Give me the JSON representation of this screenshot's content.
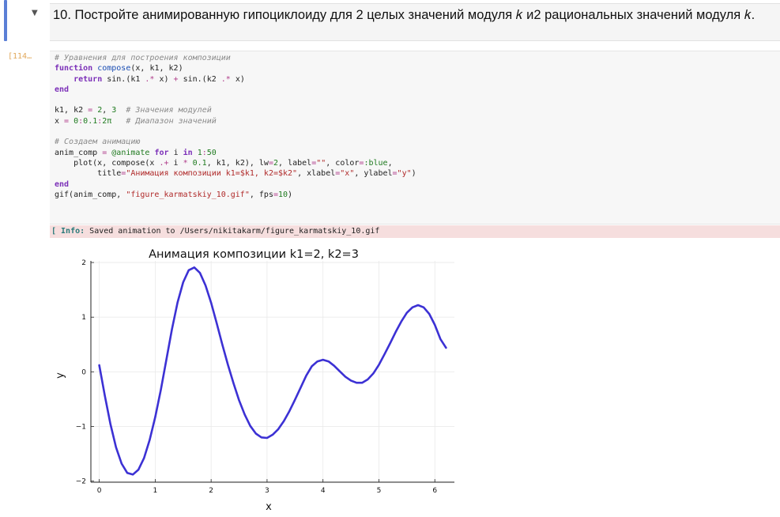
{
  "markdown_cell": {
    "collapse_icon": "triangle-down-icon",
    "heading": "10. Постройте анимированную гипоциклоиду для 2 целых значений модуля 𝑘 и2 рациональных значений модуля 𝑘."
  },
  "code_cell": {
    "prompt": "[114…",
    "lines": [
      "# Уравнения для построения композиции",
      "function compose(x, k1, k2)",
      "    return sin.(k1 .* x) + sin.(k2 .* x)",
      "end",
      "",
      "k1, k2 = 2, 3  # Значения модулей",
      "x = 0:0.1:2π   # Диапазон значений",
      "",
      "# Создаем анимацию",
      "anim_comp = @animate for i in 1:50",
      "    plot(x, compose(x .+ i * 0.1, k1, k2), lw=2, label=\"\", color=:blue,",
      "         title=\"Анимация композиции k1=$k1, k2=$k2\", xlabel=\"x\", ylabel=\"y\")",
      "end",
      "gif(anim_comp, \"figure_karmatskiy_10.gif\", fps=10)"
    ]
  },
  "output": {
    "tag": "[ Info:",
    "message": " Saved animation to /Users/nikitakarm/figure_karmatskiy_10.gif"
  },
  "chart_data": {
    "type": "line",
    "title": "Анимация композиции k1=2, k2=3",
    "xlabel": "x",
    "ylabel": "y",
    "xlim": [
      -0.15,
      6.35
    ],
    "ylim": [
      -2.02,
      2.03
    ],
    "xticks": [
      "0",
      "1",
      "2",
      "3",
      "4",
      "5",
      "6"
    ],
    "yticks": [
      "−2",
      "−1",
      "0",
      "1",
      "2"
    ],
    "grid": true,
    "legend": "none",
    "series": [
      {
        "color": "#3c31d4",
        "x": [
          0,
          0.1,
          0.2,
          0.3,
          0.4,
          0.5,
          0.6,
          0.7,
          0.8,
          0.9,
          1.0,
          1.1,
          1.2,
          1.3,
          1.4,
          1.5,
          1.6,
          1.7,
          1.8,
          1.9,
          2.0,
          2.1,
          2.2,
          2.3,
          2.4,
          2.5,
          2.6,
          2.7,
          2.8,
          2.9,
          3.0,
          3.1,
          3.2,
          3.3,
          3.4,
          3.5,
          3.6,
          3.7,
          3.8,
          3.9,
          4.0,
          4.1,
          4.2,
          4.3,
          4.4,
          4.5,
          4.6,
          4.7,
          4.8,
          4.9,
          5.0,
          5.1,
          5.2,
          5.3,
          5.4,
          5.5,
          5.6,
          5.7,
          5.8,
          5.9,
          6.0,
          6.1,
          6.2
        ],
        "y": [
          0.12,
          -0.44,
          -0.96,
          -1.38,
          -1.68,
          -1.85,
          -1.88,
          -1.79,
          -1.58,
          -1.25,
          -0.83,
          -0.33,
          0.22,
          0.78,
          1.27,
          1.64,
          1.86,
          1.91,
          1.81,
          1.58,
          1.26,
          0.89,
          0.5,
          0.13,
          -0.21,
          -0.52,
          -0.78,
          -0.99,
          -1.13,
          -1.2,
          -1.21,
          -1.15,
          -1.05,
          -0.9,
          -0.72,
          -0.51,
          -0.29,
          -0.07,
          0.1,
          0.19,
          0.22,
          0.19,
          0.11,
          0.01,
          -0.09,
          -0.16,
          -0.2,
          -0.2,
          -0.14,
          -0.03,
          0.13,
          0.32,
          0.52,
          0.73,
          0.92,
          1.08,
          1.18,
          1.22,
          1.18,
          1.06,
          0.86,
          0.6,
          0.44
        ]
      }
    ]
  }
}
